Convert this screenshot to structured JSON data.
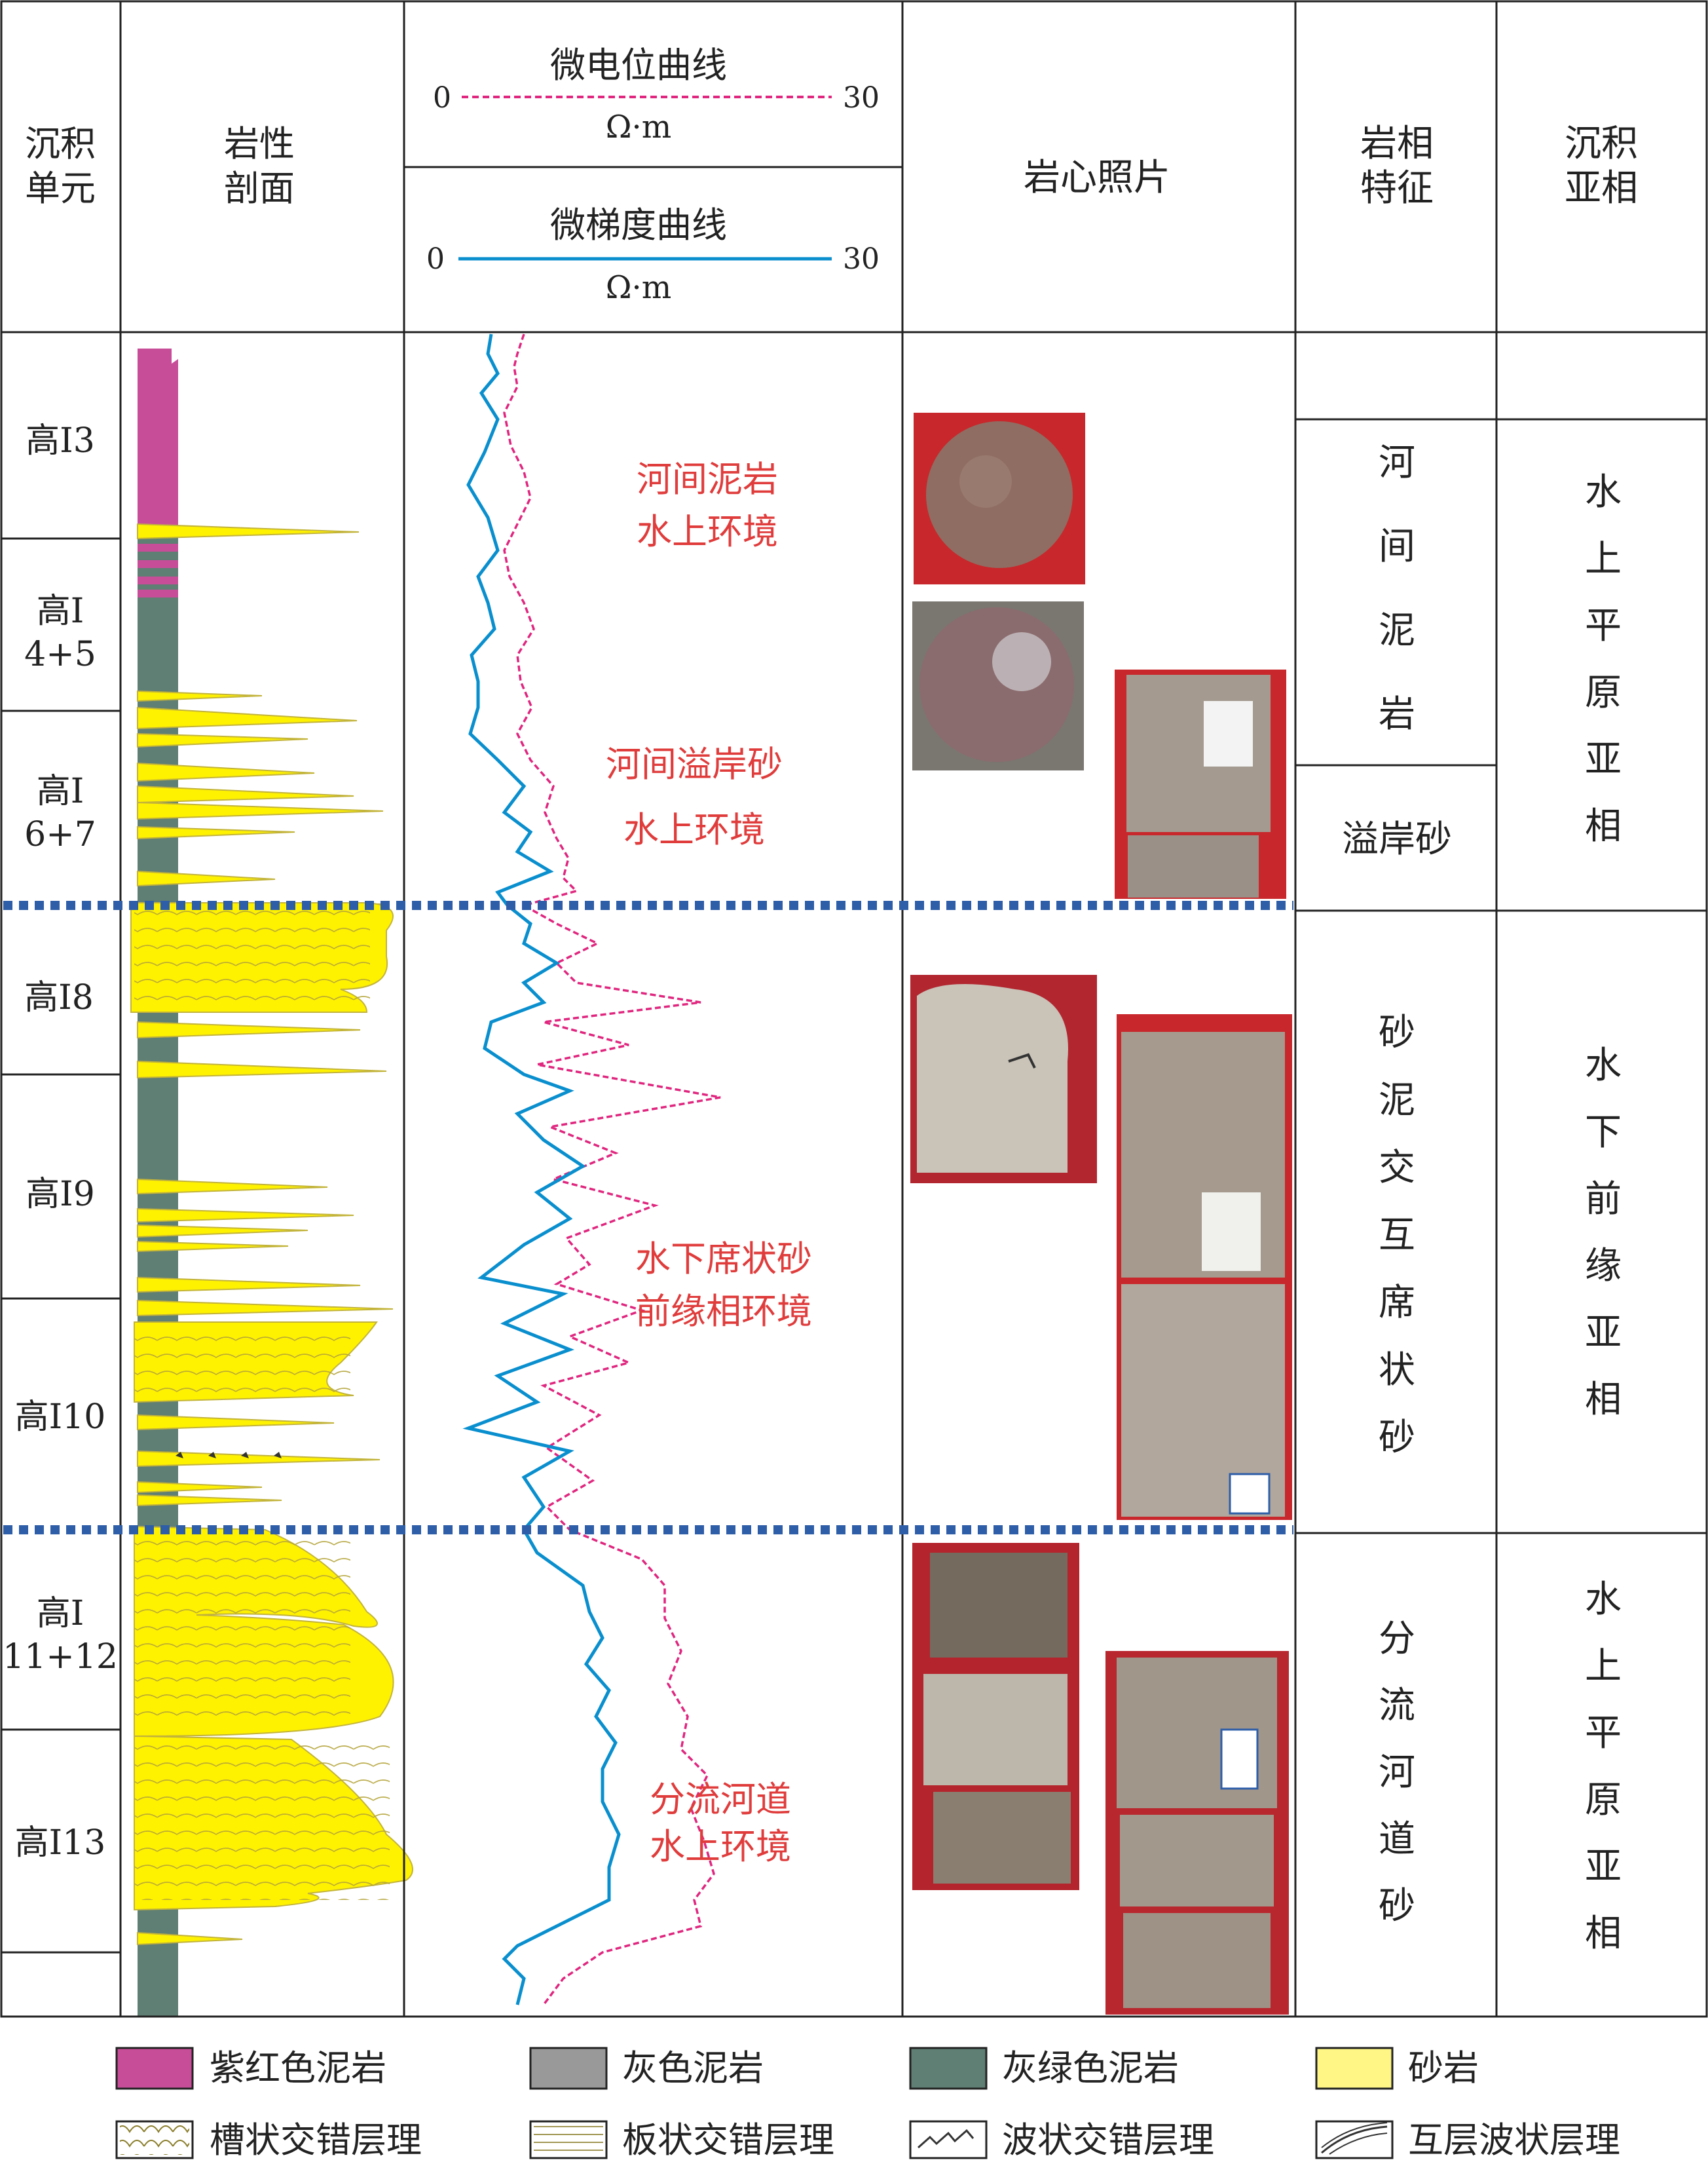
{
  "colors": {
    "purple_mud": "#c84d99",
    "gray_mud": "#999999",
    "greygreen_mud": "#5f7e74",
    "sand": "#fff200",
    "sand_edge": "#c2b33a",
    "micro_potential": "#e0267f",
    "micro_gradient": "#0a8fce",
    "annotation": "#e03c3c",
    "boundary": "#2e5ea8",
    "grid": "#222222"
  },
  "header": {
    "unit_label": "沉积\n单元",
    "lithology_label": "岩性\n剖面",
    "curve1": {
      "name": "微电位曲线",
      "min": "0",
      "max": "30",
      "unit": "Ω·m"
    },
    "curve2": {
      "name": "微梯度曲线",
      "min": "0",
      "max": "30",
      "unit": "Ω·m"
    },
    "core_label": "岩心照片",
    "facies_label": "岩相\n特征",
    "subfacies_label": "沉积\n亚相"
  },
  "units": [
    "高Ⅰ3",
    "高Ⅰ\n4+5",
    "高Ⅰ\n6+7",
    "高Ⅰ8",
    "高Ⅰ9",
    "高Ⅰ10",
    "高Ⅰ\n11+12",
    "高Ⅰ13"
  ],
  "annotations": [
    "河间泥岩\n水上环境",
    "河间溢岸砂\n水上环境",
    "水下席状砂\n前缘相环境",
    "分流河道\n水上环境"
  ],
  "facies": [
    "河\n间\n泥\n岩",
    "溢岸砂",
    "砂\n泥\n交\n互\n席\n状\n砂",
    "分\n流\n河\n道\n砂"
  ],
  "subfacies": [
    "水\n上\n平\n原\n亚\n相",
    "水\n下\n前\n缘\n亚\n相",
    "水\n上\n平\n原\n亚\n相"
  ],
  "legend": [
    {
      "label": "紫红色泥岩",
      "swatch": "purple"
    },
    {
      "label": "灰色泥岩",
      "swatch": "gray"
    },
    {
      "label": "灰绿色泥岩",
      "swatch": "greygreen"
    },
    {
      "label": "砂岩",
      "swatch": "sand"
    },
    {
      "label": "槽状交错层理",
      "swatch": "trough"
    },
    {
      "label": "板状交错层理",
      "swatch": "planar"
    },
    {
      "label": "波状交错层理",
      "swatch": "wavy"
    },
    {
      "label": "互层波状层理",
      "swatch": "interbed"
    }
  ]
}
